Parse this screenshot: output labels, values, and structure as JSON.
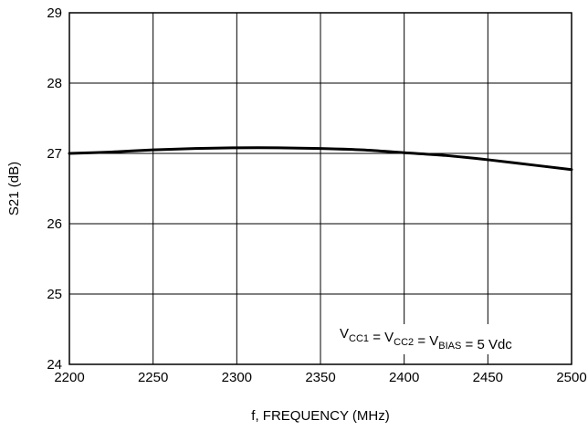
{
  "chart_data": {
    "type": "line",
    "xlabel": "f, FREQUENCY (MHz)",
    "ylabel": "S21 (dB)",
    "xlim": [
      2200,
      2500
    ],
    "ylim": [
      24,
      29
    ],
    "x_ticks": [
      "2200",
      "2250",
      "2300",
      "2350",
      "2400",
      "2450",
      "2500"
    ],
    "y_ticks": [
      "24",
      "25",
      "26",
      "27",
      "28",
      "29"
    ],
    "grid": true,
    "series": [
      {
        "color": "#000000",
        "x": [
          2200,
          2225,
          2250,
          2275,
          2300,
          2325,
          2350,
          2375,
          2400,
          2425,
          2450,
          2475,
          2500
        ],
        "values": [
          27.0,
          27.02,
          27.05,
          27.07,
          27.08,
          27.08,
          27.07,
          27.05,
          27.01,
          26.97,
          26.91,
          26.84,
          26.77
        ]
      }
    ],
    "annotation": {
      "parts": [
        {
          "text": "V",
          "sub": "CC1"
        },
        {
          "text": " = V",
          "sub": "CC2"
        },
        {
          "text": " = V",
          "sub": "BIAS"
        },
        {
          "text": " = 5 Vdc",
          "sub": ""
        }
      ]
    }
  }
}
